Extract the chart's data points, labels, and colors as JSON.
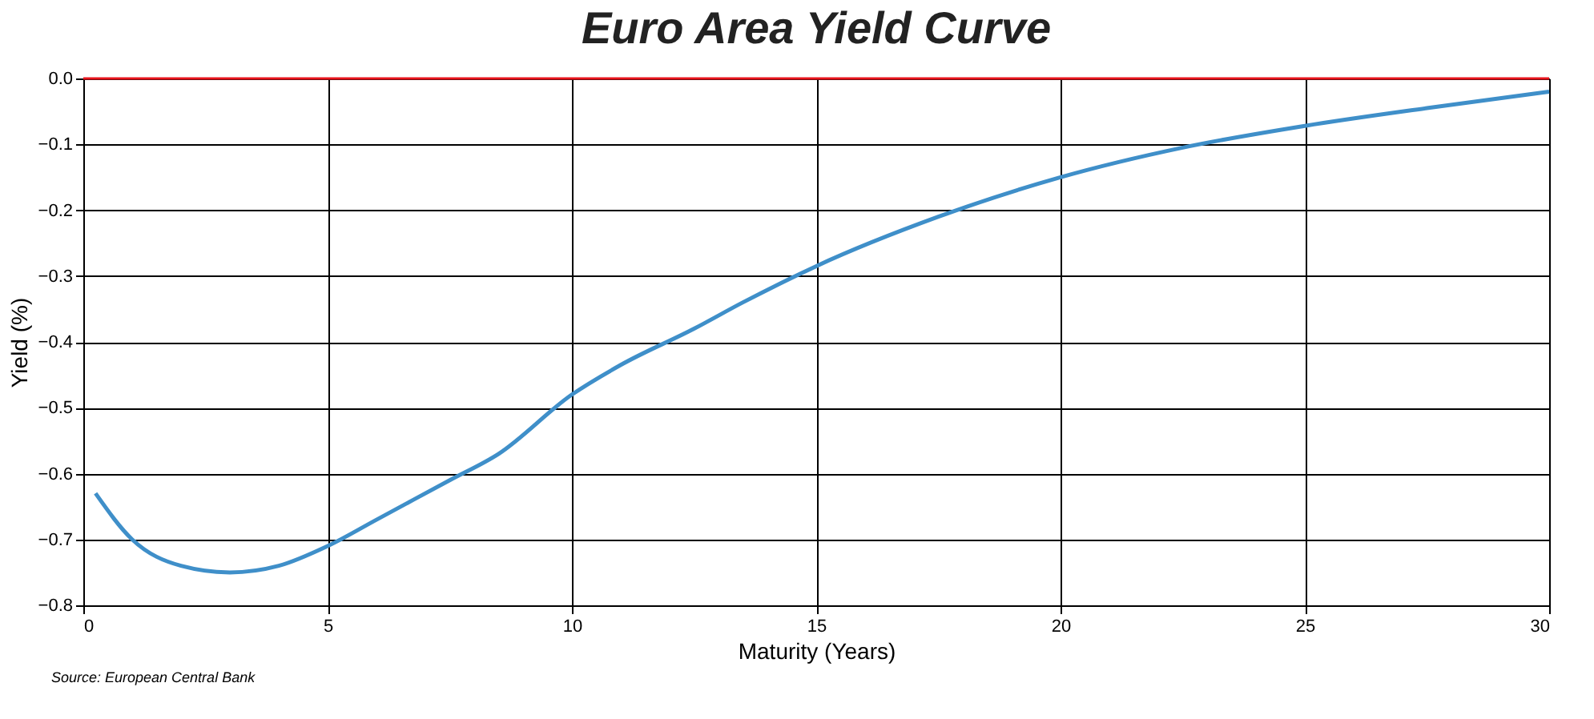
{
  "chart_data": {
    "type": "line",
    "title": "Euro Area Yield Curve",
    "xlabel": "Maturity (Years)",
    "ylabel": "Yield (%)",
    "x": [
      0.25,
      1,
      2,
      3,
      4,
      5,
      6,
      7.5,
      8.5,
      10,
      11,
      12.5,
      13.5,
      15,
      17.5,
      20,
      22.5,
      25,
      27.5,
      30
    ],
    "series": [
      {
        "color": "#3f8fc9",
        "values": [
          -0.63,
          -0.7,
          -0.74,
          -0.75,
          -0.74,
          -0.71,
          -0.67,
          -0.61,
          -0.57,
          -0.48,
          -0.435,
          -0.38,
          -0.34,
          -0.285,
          -0.21,
          -0.15,
          -0.105,
          -0.072,
          -0.045,
          -0.02
        ]
      }
    ],
    "xlim": [
      0,
      30
    ],
    "xticks": [
      0,
      5,
      10,
      15,
      20,
      25,
      30
    ],
    "ylim": [
      -0.8,
      0
    ],
    "yticks": [
      -0.8,
      -0.7,
      -0.6,
      -0.5,
      -0.4,
      -0.3,
      -0.2,
      -0.1,
      {
        "value": 0,
        "label": "0.0"
      }
    ],
    "grid": true,
    "line_style": "solid",
    "marker": "none",
    "ref_lines": [
      {
        "axis": "y",
        "value": 0,
        "color": "#e8141c"
      }
    ],
    "annotations": [
      "Source: European Central Bank"
    ]
  }
}
